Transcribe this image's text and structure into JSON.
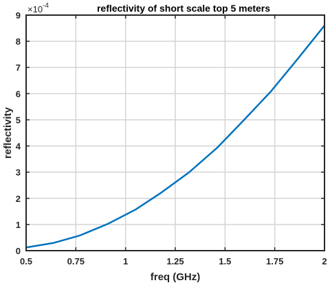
{
  "chart_data": {
    "type": "line",
    "title": "reflectivity of short scale top 5 meters",
    "xlabel": "freq (GHz)",
    "ylabel": "reflectivity",
    "y_exponent_base": "×10",
    "y_exponent_power": "-4",
    "xlim": [
      0.5,
      2
    ],
    "ylim": [
      0,
      9
    ],
    "x_ticks": [
      0.5,
      0.75,
      1,
      1.25,
      1.5,
      1.75,
      2
    ],
    "x_tick_labels": [
      "0.5",
      "0.75",
      "1",
      "1.25",
      "1.5",
      "1.75",
      "2"
    ],
    "y_ticks": [
      0,
      1,
      2,
      3,
      4,
      5,
      6,
      7,
      8,
      9
    ],
    "y_tick_labels": [
      "0",
      "1",
      "2",
      "3",
      "4",
      "5",
      "6",
      "7",
      "8",
      "9"
    ],
    "grid": true,
    "series": [
      {
        "color": "#0072bd",
        "x": [
          0.5,
          0.64,
          0.77,
          0.91,
          1.05,
          1.18,
          1.32,
          1.46,
          1.59,
          1.73,
          1.86,
          2.0
        ],
        "y": [
          0.12,
          0.3,
          0.58,
          1.02,
          1.57,
          2.22,
          3.0,
          3.93,
          4.95,
          6.08,
          7.28,
          8.6
        ]
      }
    ]
  }
}
